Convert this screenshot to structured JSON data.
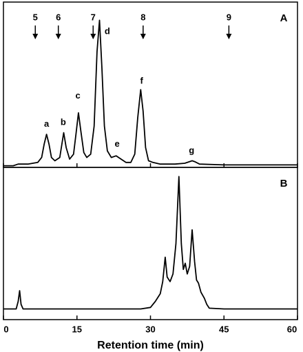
{
  "chart_data": [
    {
      "type": "line",
      "panel_label": "A",
      "color": "#000000",
      "xlim": [
        0,
        60
      ],
      "ylim": [
        0,
        100
      ],
      "x": [
        0,
        2,
        3,
        5,
        6,
        7,
        7.8,
        8.3,
        8.8,
        9.3,
        9.8,
        10.5,
        11.5,
        12.3,
        12.8,
        13.5,
        14.3,
        14.8,
        15.3,
        15.8,
        16.4,
        17,
        17.8,
        18.5,
        19.1,
        19.6,
        20.1,
        20.6,
        21.2,
        22,
        23,
        24,
        25,
        26,
        26.8,
        27.4,
        28,
        28.5,
        29,
        29.6,
        30.5,
        32,
        35,
        37,
        38,
        38.5,
        39,
        40,
        45,
        50,
        55,
        60
      ],
      "values": [
        1,
        1,
        2,
        2,
        2.5,
        3,
        6,
        14,
        20,
        14,
        6,
        4,
        6,
        21,
        12,
        5,
        8,
        20,
        33,
        22,
        9,
        6,
        8,
        25,
        70,
        89,
        60,
        25,
        10,
        6,
        7,
        5,
        3,
        3,
        8,
        30,
        47,
        34,
        12,
        4,
        3,
        2,
        2,
        2.5,
        3.5,
        4,
        3.5,
        2,
        1.5,
        1.5,
        1.5,
        1.5
      ],
      "markers": [
        {
          "label": "5",
          "x": 6.5
        },
        {
          "label": "6",
          "x": 11.2
        },
        {
          "label": "7",
          "x": 18.3
        },
        {
          "label": "8",
          "x": 28.5
        },
        {
          "label": "9",
          "x": 46
        }
      ],
      "annotations": [
        {
          "text": "a",
          "x": 8.8,
          "y": 26
        },
        {
          "text": "b",
          "x": 12.2,
          "y": 27
        },
        {
          "text": "c",
          "x": 15.2,
          "y": 43
        },
        {
          "text": "d",
          "x": 21.2,
          "y": 82
        },
        {
          "text": "e",
          "x": 23.2,
          "y": 14
        },
        {
          "text": "f",
          "x": 28.2,
          "y": 52
        },
        {
          "text": "g",
          "x": 38.4,
          "y": 10
        }
      ]
    },
    {
      "type": "line",
      "panel_label": "B",
      "color": "#000000",
      "xlim": [
        0,
        60
      ],
      "ylim": [
        0,
        100
      ],
      "xticks": [
        0,
        15,
        30,
        45,
        60
      ],
      "xlabel": "Retention time (min)",
      "x": [
        0,
        2.6,
        3,
        3.3,
        3.6,
        4,
        10,
        20,
        28,
        30,
        31,
        32,
        32.5,
        33,
        33.4,
        34,
        34.6,
        35.2,
        35.8,
        36.3,
        36.7,
        37.1,
        37.5,
        38,
        38.5,
        39,
        39.4,
        39.8,
        40.3,
        41,
        41.5,
        42,
        45,
        50,
        55,
        60
      ],
      "values": [
        7,
        7,
        12,
        19,
        10,
        7,
        7,
        7,
        7,
        8,
        12,
        17,
        25,
        41,
        28,
        25,
        30,
        50,
        94,
        50,
        33,
        37,
        30,
        35,
        59,
        38,
        26,
        24,
        18,
        14,
        10,
        7.5,
        7,
        7,
        7,
        7
      ]
    }
  ]
}
